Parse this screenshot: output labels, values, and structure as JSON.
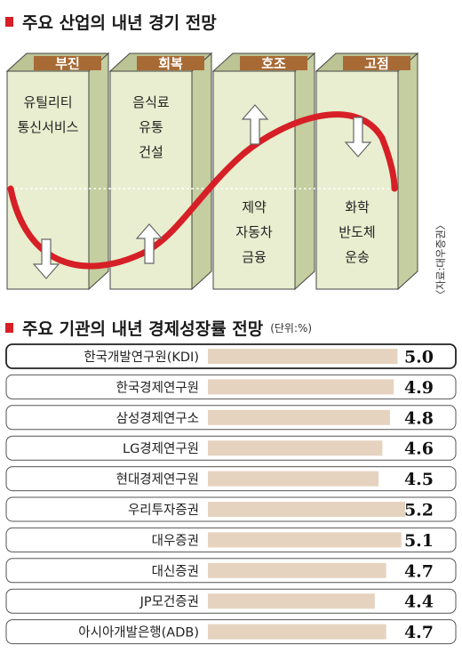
{
  "section1": {
    "title": "주요 산업의 내년 경기 전망"
  },
  "section2": {
    "title": "주요 기관의 내년 경제성장률 전망",
    "unit": "(단위:%)"
  },
  "source": "〈자료:대우증권〉",
  "colors": {
    "box_face": "#e8eecf",
    "box_side": "#c4cea0",
    "box_top": "#bcc394",
    "stage_label_bg": "#a86a35",
    "curve": "#d61f26",
    "bar": "#e6d3bf",
    "marker": "#d61f26"
  },
  "industry_outlook": [
    {
      "stage": "부진",
      "industries_top": [
        "유틸리티",
        "통신서비스"
      ],
      "industries_bottom": [],
      "arrow": "down"
    },
    {
      "stage": "회복",
      "industries_top": [
        "음식료",
        "유통",
        "건설"
      ],
      "industries_bottom": [],
      "arrow": "up"
    },
    {
      "stage": "호조",
      "industries_top": [],
      "industries_bottom": [
        "제약",
        "자동차",
        "금융"
      ],
      "arrow": "up"
    },
    {
      "stage": "고점",
      "industries_top": [],
      "industries_bottom": [
        "화학",
        "반도체",
        "운송"
      ],
      "arrow": "down"
    }
  ],
  "chart_data": {
    "type": "bar",
    "title": "주요 기관의 내년 경제성장률 전망",
    "unit": "%",
    "orientation": "horizontal",
    "categories": [
      "한국개발연구원(KDI)",
      "한국경제연구원",
      "삼성경제연구소",
      "LG경제연구원",
      "현대경제연구원",
      "우리투자증권",
      "대우증권",
      "대신증권",
      "JP모건증권",
      "아시아개발은행(ADB)"
    ],
    "values": [
      5.0,
      4.9,
      4.8,
      4.6,
      4.5,
      5.2,
      5.1,
      4.7,
      4.4,
      4.7
    ],
    "value_labels": [
      "5.0",
      "4.9",
      "4.8",
      "4.6",
      "4.5",
      "5.2",
      "5.1",
      "4.7",
      "4.4",
      "4.7"
    ],
    "highlighted": "한국개발연구원(KDI)",
    "xlim": [
      0,
      5.2
    ]
  }
}
